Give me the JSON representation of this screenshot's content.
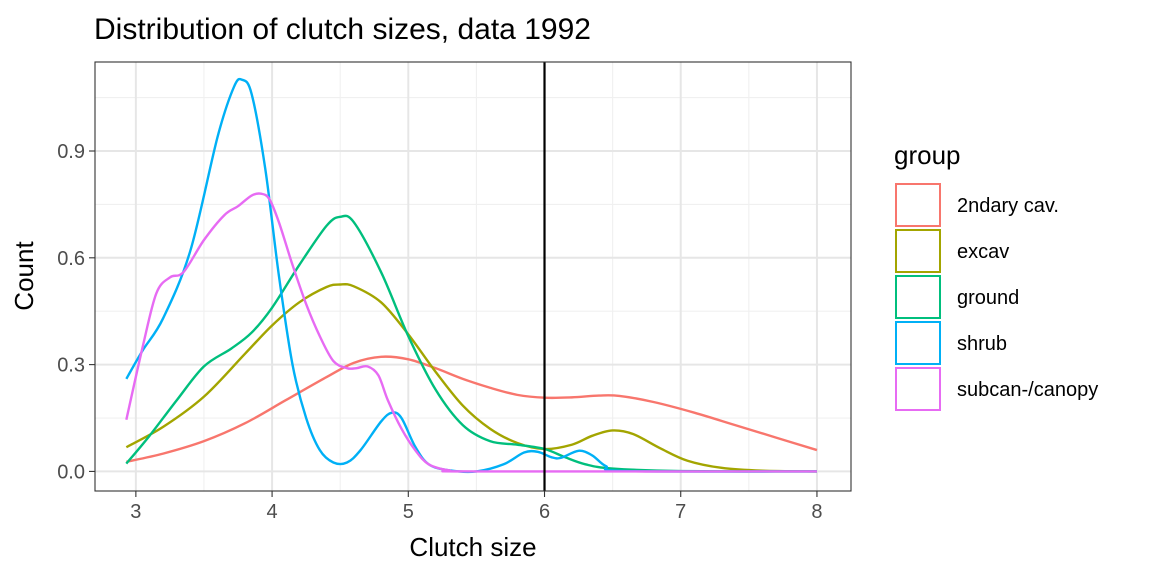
{
  "chart_data": {
    "type": "line",
    "title": "Distribution of clutch sizes, data 1992",
    "xlabel": "Clutch size",
    "ylabel": "Count",
    "xlim": [
      2.7,
      8.25
    ],
    "ylim": [
      -0.055,
      1.15
    ],
    "x_ticks": [
      3,
      4,
      5,
      6,
      7,
      8
    ],
    "y_ticks": [
      0.0,
      0.3,
      0.6,
      0.9
    ],
    "y_tick_labels": [
      "0.0",
      "0.3",
      "0.6",
      "0.9"
    ],
    "vline_x": 6,
    "grid": true,
    "legend_title": "group",
    "legend_position": "right",
    "series": [
      {
        "name": "2ndary cav.",
        "color": "#F8766D",
        "points": [
          [
            2.93,
            0.027
          ],
          [
            3.2,
            0.05
          ],
          [
            3.5,
            0.085
          ],
          [
            3.8,
            0.135
          ],
          [
            4.1,
            0.2
          ],
          [
            4.4,
            0.265
          ],
          [
            4.6,
            0.305
          ],
          [
            4.8,
            0.322
          ],
          [
            5.0,
            0.315
          ],
          [
            5.2,
            0.29
          ],
          [
            5.4,
            0.26
          ],
          [
            5.6,
            0.235
          ],
          [
            5.8,
            0.215
          ],
          [
            6.0,
            0.207
          ],
          [
            6.2,
            0.208
          ],
          [
            6.4,
            0.213
          ],
          [
            6.55,
            0.212
          ],
          [
            6.8,
            0.195
          ],
          [
            7.1,
            0.165
          ],
          [
            7.4,
            0.13
          ],
          [
            7.7,
            0.095
          ],
          [
            8.0,
            0.06
          ]
        ]
      },
      {
        "name": "excav",
        "color": "#A3A500",
        "points": [
          [
            2.93,
            0.068
          ],
          [
            3.2,
            0.125
          ],
          [
            3.5,
            0.21
          ],
          [
            3.8,
            0.33
          ],
          [
            4.0,
            0.41
          ],
          [
            4.2,
            0.475
          ],
          [
            4.4,
            0.518
          ],
          [
            4.5,
            0.525
          ],
          [
            4.6,
            0.52
          ],
          [
            4.8,
            0.475
          ],
          [
            5.0,
            0.385
          ],
          [
            5.2,
            0.28
          ],
          [
            5.4,
            0.185
          ],
          [
            5.6,
            0.12
          ],
          [
            5.8,
            0.08
          ],
          [
            6.0,
            0.063
          ],
          [
            6.2,
            0.075
          ],
          [
            6.35,
            0.1
          ],
          [
            6.5,
            0.115
          ],
          [
            6.65,
            0.105
          ],
          [
            6.85,
            0.065
          ],
          [
            7.05,
            0.03
          ],
          [
            7.3,
            0.01
          ],
          [
            7.6,
            0.002
          ],
          [
            8.0,
            0.0
          ]
        ]
      },
      {
        "name": "ground",
        "color": "#00BF7D",
        "points": [
          [
            2.93,
            0.022
          ],
          [
            3.1,
            0.1
          ],
          [
            3.3,
            0.2
          ],
          [
            3.5,
            0.295
          ],
          [
            3.7,
            0.345
          ],
          [
            3.85,
            0.39
          ],
          [
            4.0,
            0.46
          ],
          [
            4.2,
            0.58
          ],
          [
            4.4,
            0.69
          ],
          [
            4.5,
            0.715
          ],
          [
            4.6,
            0.7
          ],
          [
            4.8,
            0.56
          ],
          [
            5.0,
            0.38
          ],
          [
            5.2,
            0.23
          ],
          [
            5.4,
            0.13
          ],
          [
            5.6,
            0.085
          ],
          [
            5.8,
            0.075
          ],
          [
            6.0,
            0.063
          ],
          [
            6.15,
            0.04
          ],
          [
            6.3,
            0.02
          ],
          [
            6.5,
            0.008
          ],
          [
            7.0,
            0.001
          ],
          [
            8.0,
            0.0
          ]
        ]
      },
      {
        "name": "shrub",
        "color": "#00B0F6",
        "points": [
          [
            2.93,
            0.26
          ],
          [
            3.05,
            0.34
          ],
          [
            3.2,
            0.43
          ],
          [
            3.4,
            0.62
          ],
          [
            3.6,
            0.94
          ],
          [
            3.72,
            1.08
          ],
          [
            3.78,
            1.1
          ],
          [
            3.85,
            1.06
          ],
          [
            3.95,
            0.85
          ],
          [
            4.05,
            0.55
          ],
          [
            4.15,
            0.3
          ],
          [
            4.25,
            0.15
          ],
          [
            4.35,
            0.06
          ],
          [
            4.45,
            0.025
          ],
          [
            4.55,
            0.025
          ],
          [
            4.65,
            0.06
          ],
          [
            4.8,
            0.14
          ],
          [
            4.88,
            0.165
          ],
          [
            4.95,
            0.15
          ],
          [
            5.05,
            0.07
          ],
          [
            5.15,
            0.02
          ],
          [
            5.3,
            0.003
          ],
          [
            5.5,
            0.0
          ],
          [
            5.7,
            0.02
          ],
          [
            5.85,
            0.053
          ],
          [
            5.95,
            0.055
          ],
          [
            6.05,
            0.04
          ],
          [
            6.12,
            0.038
          ],
          [
            6.25,
            0.058
          ],
          [
            6.35,
            0.045
          ],
          [
            6.45,
            0.015
          ],
          [
            6.6,
            0.001
          ],
          [
            8.0,
            0.0
          ]
        ]
      },
      {
        "name": "subcan-/canopy",
        "color": "#E76BF3",
        "points": [
          [
            2.93,
            0.145
          ],
          [
            3.05,
            0.35
          ],
          [
            3.15,
            0.5
          ],
          [
            3.25,
            0.545
          ],
          [
            3.35,
            0.56
          ],
          [
            3.5,
            0.65
          ],
          [
            3.65,
            0.72
          ],
          [
            3.75,
            0.745
          ],
          [
            3.85,
            0.775
          ],
          [
            3.92,
            0.78
          ],
          [
            3.98,
            0.765
          ],
          [
            4.05,
            0.7
          ],
          [
            4.15,
            0.58
          ],
          [
            4.25,
            0.47
          ],
          [
            4.35,
            0.38
          ],
          [
            4.45,
            0.31
          ],
          [
            4.55,
            0.29
          ],
          [
            4.62,
            0.29
          ],
          [
            4.7,
            0.295
          ],
          [
            4.78,
            0.27
          ],
          [
            4.85,
            0.2
          ],
          [
            4.95,
            0.12
          ],
          [
            5.05,
            0.06
          ],
          [
            5.15,
            0.02
          ],
          [
            5.3,
            0.003
          ],
          [
            5.5,
            0.0
          ],
          [
            8.0,
            0.0
          ]
        ]
      }
    ]
  }
}
